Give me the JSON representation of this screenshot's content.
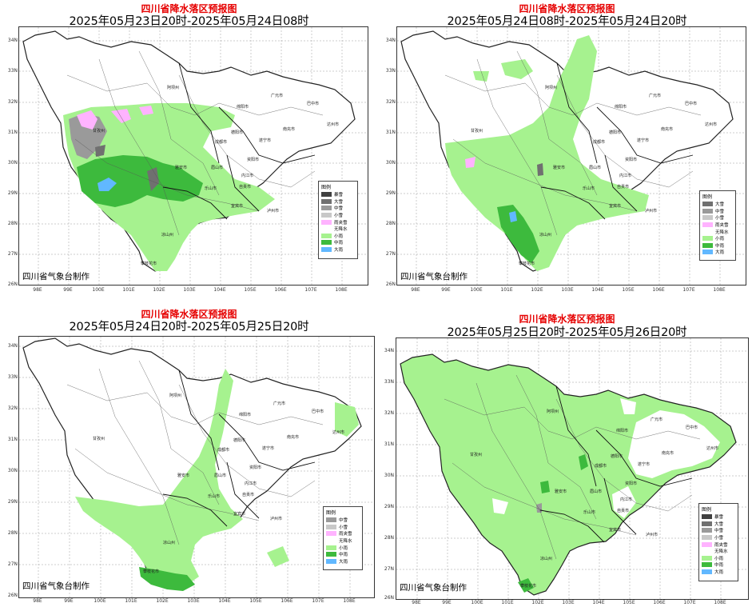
{
  "common": {
    "lat_labels": [
      "34N",
      "33N",
      "32N",
      "31N",
      "30N",
      "29N",
      "28N",
      "27N",
      "26N"
    ],
    "lon_labels": [
      "98E",
      "99E",
      "100E",
      "101E",
      "102E",
      "103E",
      "104E",
      "105E",
      "106E",
      "107E",
      "108E"
    ],
    "credit": "四川省气象台制作",
    "legend_title": "图例",
    "cities": [
      "阿坝州",
      "绵阳市",
      "广元市",
      "巴中市",
      "达州市",
      "南充市",
      "德阳市",
      "成都市",
      "甘孜州",
      "遂宁市",
      "资阳市",
      "雅安市",
      "眉山市",
      "内江市",
      "乐山市",
      "自贡市",
      "宜宾市",
      "泸州市",
      "凉山州",
      "攀枝花市"
    ]
  },
  "colors": {
    "rain_light": "#a6f28f",
    "rain_moderate": "#3dba3d",
    "rain_heavy": "#61b8ff",
    "snow_storm": "#404040",
    "snow_heavy": "#707070",
    "snow_moderate": "#9a9a9a",
    "snow_light": "#c8c8c8",
    "sleet": "#ffb3ff",
    "none": "#ffffff"
  },
  "panels": [
    {
      "title": "四川省降水落区预报图",
      "period": "2025年05月23日20时-2025年05月24日08时",
      "legend": [
        {
          "label": "暴雪",
          "color": "#404040"
        },
        {
          "label": "大雪",
          "color": "#707070"
        },
        {
          "label": "中雪",
          "color": "#9a9a9a"
        },
        {
          "label": "小雪",
          "color": "#c8c8c8"
        },
        {
          "label": "雨夹雪",
          "color": "#ffb3ff"
        },
        {
          "label": "无降水",
          "color": "#ffffff"
        },
        {
          "label": "小雨",
          "color": "#a6f28f"
        },
        {
          "label": "中雨",
          "color": "#3dba3d"
        },
        {
          "label": "大雨",
          "color": "#61b8ff"
        }
      ]
    },
    {
      "title": "四川省降水落区预报图",
      "period": "2025年05月24日08时-2025年05月24日20时",
      "legend": [
        {
          "label": "大雪",
          "color": "#707070"
        },
        {
          "label": "中雪",
          "color": "#9a9a9a"
        },
        {
          "label": "小雪",
          "color": "#c8c8c8"
        },
        {
          "label": "雨夹雪",
          "color": "#ffb3ff"
        },
        {
          "label": "无降水",
          "color": "#ffffff"
        },
        {
          "label": "小雨",
          "color": "#a6f28f"
        },
        {
          "label": "中雨",
          "color": "#3dba3d"
        },
        {
          "label": "大雨",
          "color": "#61b8ff"
        }
      ]
    },
    {
      "title": "四川省降水落区预报图",
      "period": "2025年05月24日20时-2025年05月25日20时",
      "legend": [
        {
          "label": "中雪",
          "color": "#9a9a9a"
        },
        {
          "label": "小雪",
          "color": "#c8c8c8"
        },
        {
          "label": "雨夹雪",
          "color": "#ffb3ff"
        },
        {
          "label": "无降水",
          "color": "#ffffff"
        },
        {
          "label": "小雨",
          "color": "#a6f28f"
        },
        {
          "label": "中雨",
          "color": "#3dba3d"
        },
        {
          "label": "大雨",
          "color": "#61b8ff"
        }
      ]
    },
    {
      "title": "四川省降水落区预报图",
      "period": "2025年05月25日20时-2025年05月26日20时",
      "legend": [
        {
          "label": "暴雪",
          "color": "#404040"
        },
        {
          "label": "大雪",
          "color": "#707070"
        },
        {
          "label": "中雪",
          "color": "#9a9a9a"
        },
        {
          "label": "小雪",
          "color": "#c8c8c8"
        },
        {
          "label": "雨夹雪",
          "color": "#ffb3ff"
        },
        {
          "label": "无降水",
          "color": "#ffffff"
        },
        {
          "label": "小雨",
          "color": "#a6f28f"
        },
        {
          "label": "中雨",
          "color": "#3dba3d"
        },
        {
          "label": "大雨",
          "color": "#61b8ff"
        }
      ]
    }
  ]
}
